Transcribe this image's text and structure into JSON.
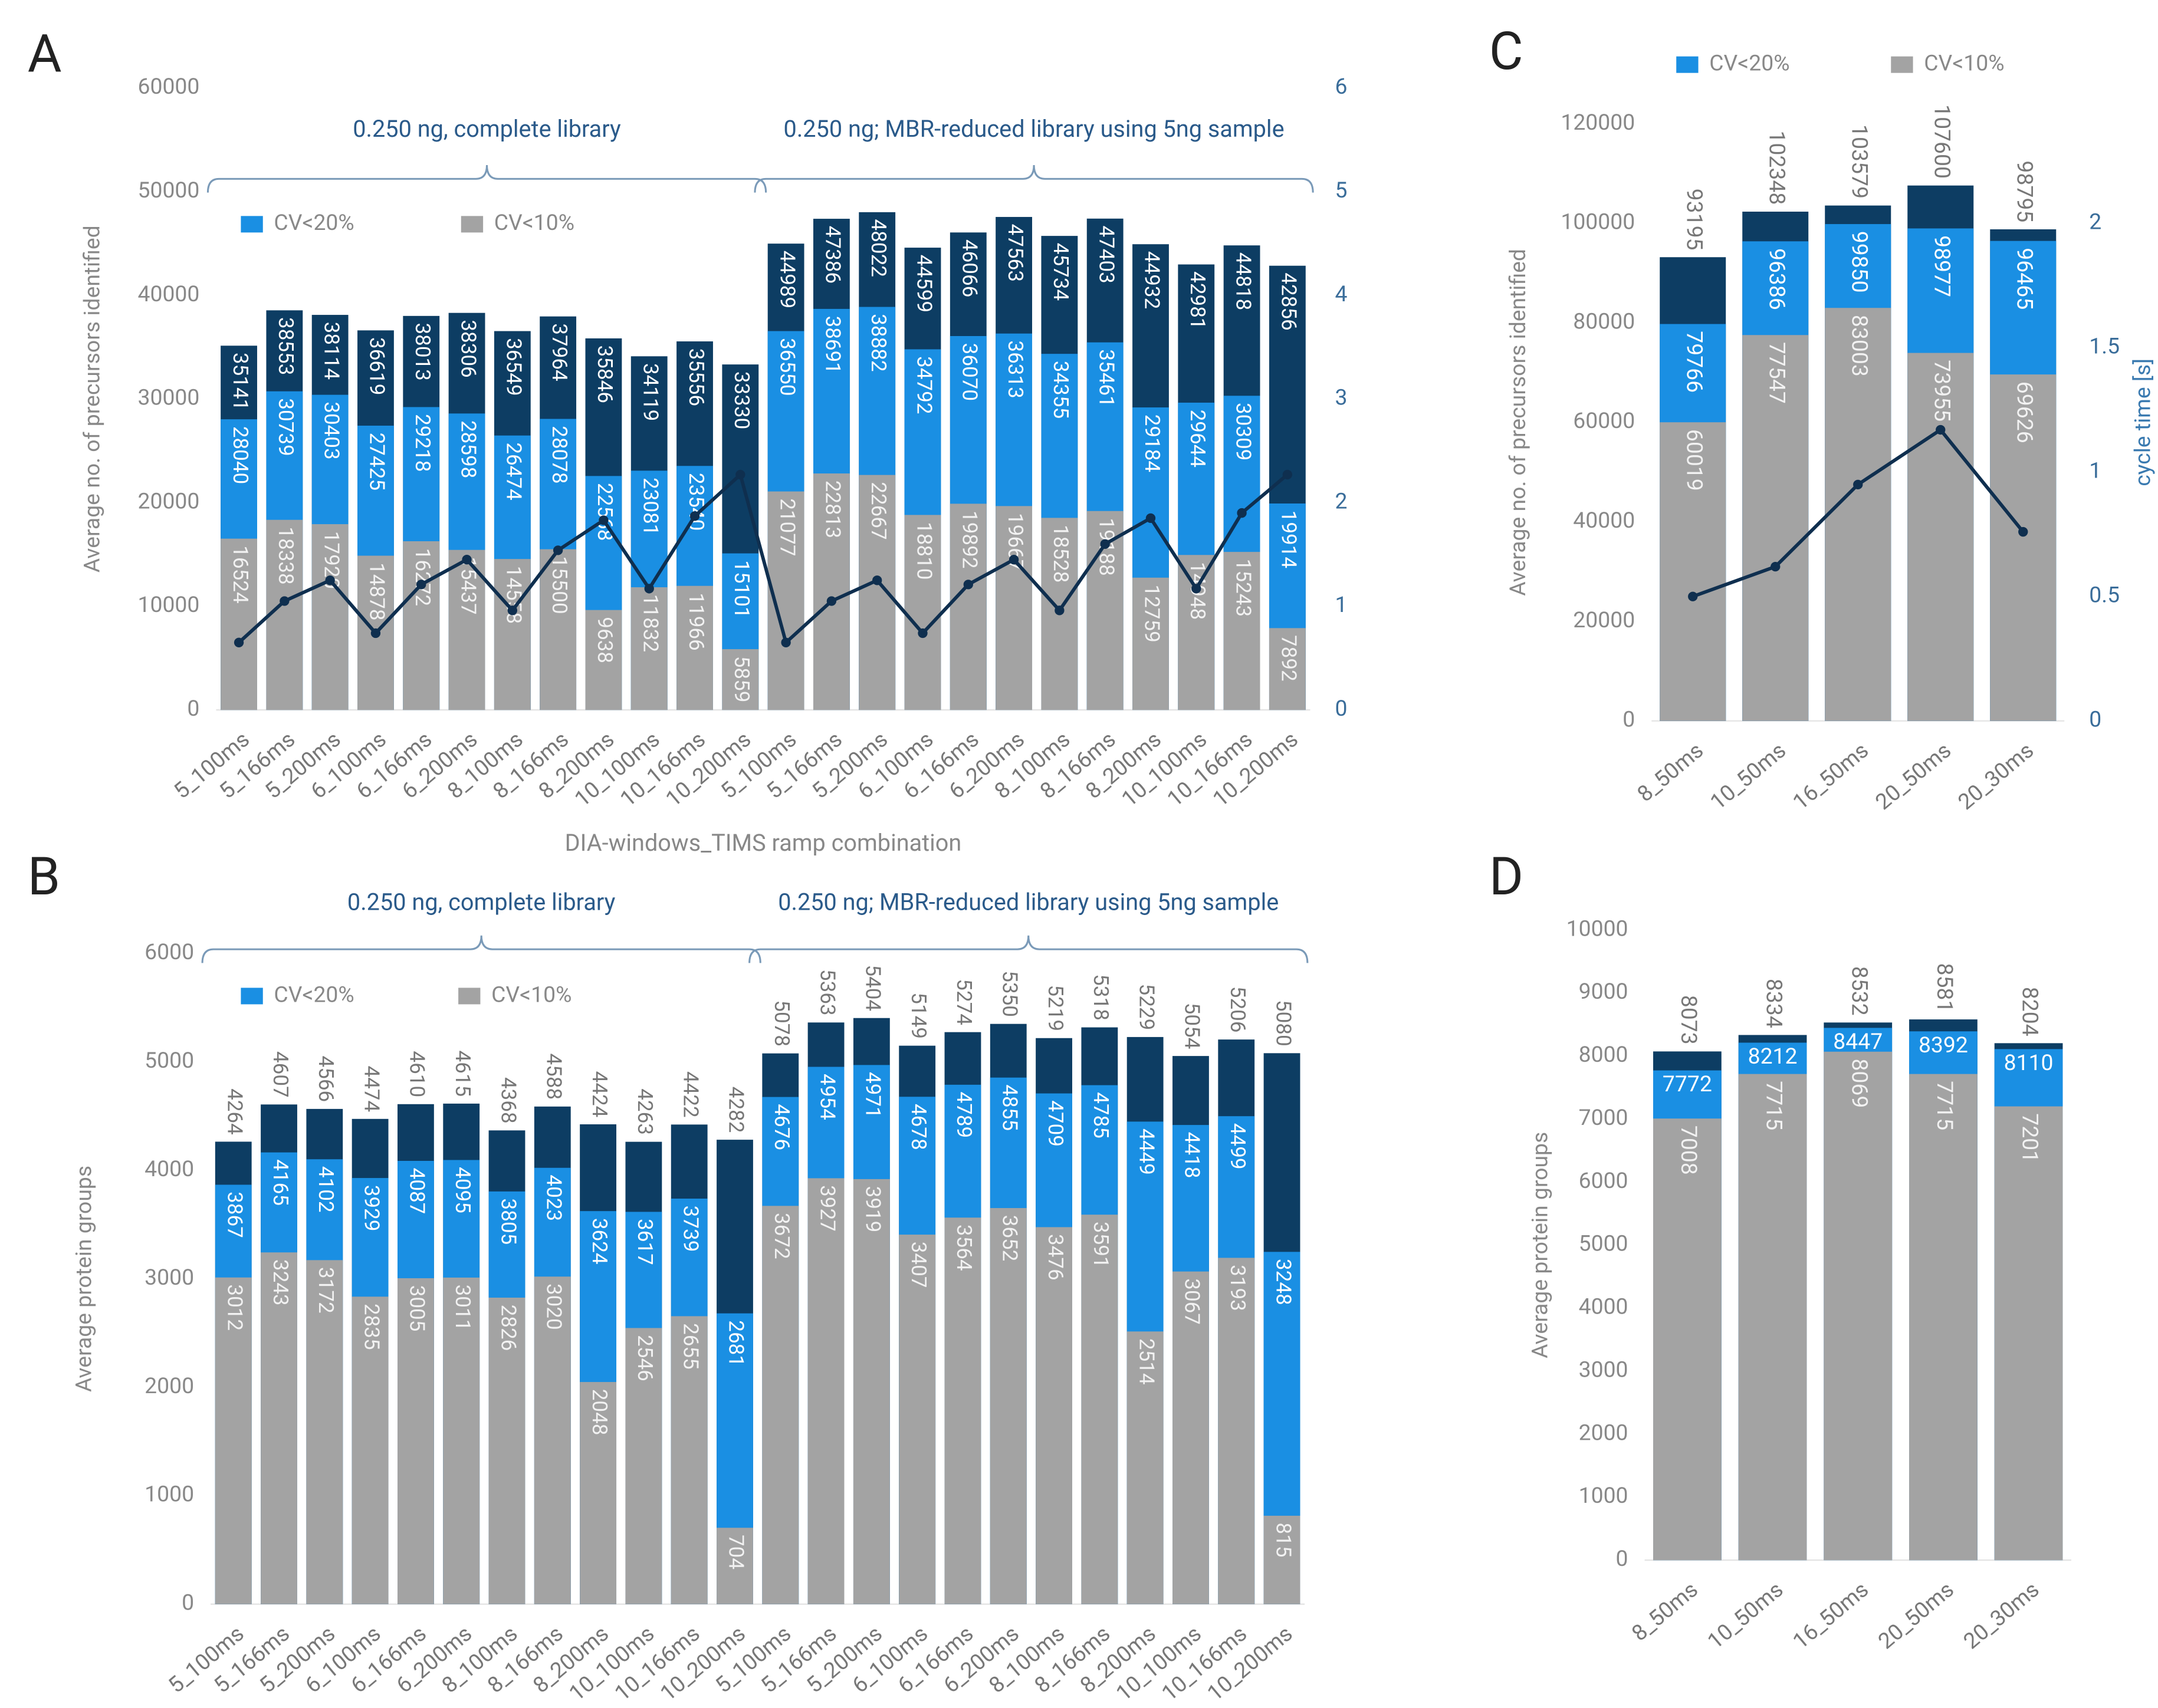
{
  "chart_data": [
    {
      "type": "bar",
      "panel_label": "A",
      "y_label": "Average no. of precursors identified",
      "x_label": "DIA-windows_TIMS ramp combination",
      "annotations": [
        "0.250 ng, complete library",
        "0.250 ng; MBR-reduced library using 5ng sample"
      ],
      "categories": [
        "5_100ms",
        "5_166ms",
        "5_200ms",
        "6_100ms",
        "6_166ms",
        "6_200ms",
        "8_100ms",
        "8_166ms",
        "8_200ms",
        "10_100ms",
        "10_166ms",
        "10_200ms",
        "5_100ms",
        "5_166ms",
        "5_200ms",
        "6_100ms",
        "6_166ms",
        "6_200ms",
        "8_100ms",
        "8_166ms",
        "8_200ms",
        "10_100ms",
        "10_166ms",
        "10_200ms"
      ],
      "series": [
        {
          "color": "#0d3d63",
          "values": [
            35141,
            38553,
            38114,
            36619,
            38013,
            38306,
            36549,
            37964,
            35846,
            34119,
            35556,
            33330,
            44989,
            47386,
            48022,
            44599,
            46066,
            47563,
            45734,
            47403,
            44932,
            42981,
            44818,
            42856
          ]
        },
        {
          "name": "CV<20%",
          "color": "#1a8fe3",
          "values": [
            28040,
            30739,
            30403,
            27425,
            29218,
            28598,
            26474,
            28078,
            22568,
            23081,
            23540,
            15101,
            36550,
            38691,
            38882,
            34792,
            36070,
            36313,
            34355,
            35461,
            29184,
            29644,
            30309,
            19914
          ]
        },
        {
          "name": "CV<10%",
          "color": "#a3a3a3",
          "values": [
            16524,
            18338,
            17920,
            14878,
            16272,
            15437,
            14558,
            15500,
            9638,
            11832,
            11966,
            5859,
            21077,
            22813,
            22667,
            18810,
            19892,
            19667,
            18528,
            19188,
            12759,
            14948,
            15243,
            7892
          ]
        },
        {
          "type": "line",
          "axis": "y2",
          "color": "#0f2f4f",
          "values": [
            0.65,
            1.05,
            1.25,
            0.74,
            1.21,
            1.45,
            0.96,
            1.54,
            1.83,
            1.17,
            1.87,
            2.27,
            0.65,
            1.05,
            1.25,
            0.74,
            1.21,
            1.45,
            0.96,
            1.6,
            1.85,
            1.17,
            1.9,
            2.27
          ]
        }
      ],
      "ylim": [
        0,
        60000
      ],
      "yticks": [
        0,
        10000,
        20000,
        30000,
        40000,
        50000,
        60000
      ],
      "y2lim": [
        0,
        6
      ],
      "y2ticks": [
        0,
        1,
        2,
        3,
        4,
        5,
        6
      ],
      "legend": "top-left",
      "grid": false
    },
    {
      "type": "bar",
      "panel_label": "B",
      "y_label": "Average protein groups",
      "annotations": [
        "0.250 ng, complete library",
        "0.250 ng; MBR-reduced library using 5ng sample"
      ],
      "categories": [
        "5_100ms",
        "5_166ms",
        "5_200ms",
        "6_100ms",
        "6_166ms",
        "6_200ms",
        "8_100ms",
        "8_166ms",
        "8_200ms",
        "10_100ms",
        "10_166ms",
        "10_200ms",
        "5_100ms",
        "5_166ms",
        "5_200ms",
        "6_100ms",
        "6_166ms",
        "6_200ms",
        "8_100ms",
        "8_166ms",
        "8_200ms",
        "10_100ms",
        "10_166ms",
        "10_200ms"
      ],
      "series": [
        {
          "color": "#0d3d63",
          "values": [
            4264,
            4607,
            4566,
            4474,
            4610,
            4615,
            4368,
            4588,
            4424,
            4263,
            4422,
            4282,
            5078,
            5363,
            5404,
            5149,
            5274,
            5350,
            5219,
            5318,
            5229,
            5054,
            5206,
            5080
          ]
        },
        {
          "name": "CV<20%",
          "color": "#1a8fe3",
          "values": [
            3867,
            4165,
            4102,
            3929,
            4087,
            4095,
            3805,
            4023,
            3624,
            3617,
            3739,
            2681,
            4676,
            4954,
            4971,
            4678,
            4789,
            4855,
            4709,
            4785,
            4449,
            4418,
            4499,
            3248
          ]
        },
        {
          "name": "CV<10%",
          "color": "#a3a3a3",
          "values": [
            3012,
            3243,
            3172,
            2835,
            3005,
            3011,
            2826,
            3020,
            2048,
            2546,
            2655,
            704,
            3672,
            3927,
            3919,
            3407,
            3564,
            3652,
            3476,
            3591,
            2514,
            3067,
            3193,
            815
          ]
        }
      ],
      "ylim": [
        0,
        6000
      ],
      "yticks": [
        0,
        1000,
        2000,
        3000,
        4000,
        5000,
        6000
      ],
      "legend": "top-left",
      "grid": false
    },
    {
      "type": "bar",
      "panel_label": "C",
      "y_label": "Average no. of precursors identified",
      "y2_label": "cycle time [s]",
      "categories": [
        "8_50ms",
        "10_50ms",
        "16_50ms",
        "20_50ms",
        "20_30ms"
      ],
      "series": [
        {
          "color": "#0d3d63",
          "values": [
            93195,
            102348,
            103579,
            107600,
            98795
          ]
        },
        {
          "name": "CV<20%",
          "color": "#1a8fe3",
          "values": [
            79766,
            96386,
            99850,
            98977,
            96465
          ]
        },
        {
          "name": "CV<10%",
          "color": "#a3a3a3",
          "values": [
            60019,
            77547,
            83003,
            73955,
            69626
          ]
        },
        {
          "type": "line",
          "axis": "y2",
          "color": "#0f2f4f",
          "values": [
            0.5,
            0.62,
            0.95,
            1.17,
            0.76
          ]
        }
      ],
      "ylim": [
        0,
        120000
      ],
      "yticks": [
        0,
        20000,
        40000,
        60000,
        80000,
        100000,
        120000
      ],
      "y2lim": [
        0,
        2.4
      ],
      "y2ticks": [
        0,
        0.5,
        1,
        1.5,
        2
      ],
      "legend": "top",
      "grid": false
    },
    {
      "type": "bar",
      "panel_label": "D",
      "y_label": "Average protein groups",
      "categories": [
        "8_50ms",
        "10_50ms",
        "16_50ms",
        "20_50ms",
        "20_30ms"
      ],
      "series": [
        {
          "color": "#0d3d63",
          "values": [
            8073,
            8334,
            8532,
            8581,
            8204
          ]
        },
        {
          "color": "#1a8fe3",
          "values": [
            7772,
            8212,
            8447,
            8392,
            8110
          ]
        },
        {
          "color": "#a3a3a3",
          "values": [
            7008,
            7715,
            8069,
            7715,
            7201
          ]
        }
      ],
      "ylim": [
        0,
        10000
      ],
      "yticks": [
        0,
        1000,
        2000,
        3000,
        4000,
        5000,
        6000,
        7000,
        8000,
        9000,
        10000
      ],
      "grid": false
    }
  ]
}
